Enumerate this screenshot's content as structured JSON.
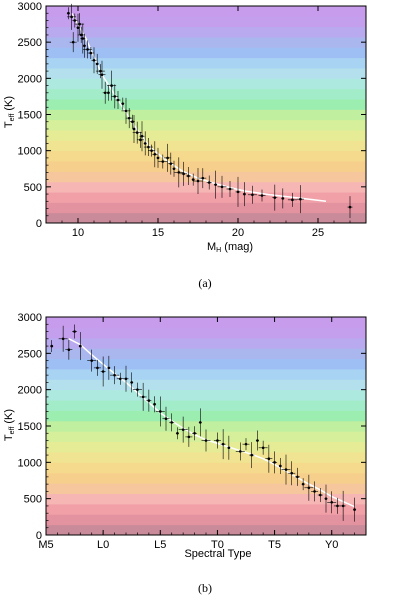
{
  "band_colors": [
    "#c98b9a",
    "#e3929f",
    "#f1a0a8",
    "#f6b7b4",
    "#f6c79c",
    "#f7cf8c",
    "#f5d98c",
    "#f0e391",
    "#e6ec95",
    "#d6ef9a",
    "#bfef9f",
    "#9bedb0",
    "#a3ecc9",
    "#aee9df",
    "#b3e0ec",
    "#a9d3f3",
    "#9ebff3",
    "#aab7ef",
    "#b9aaef",
    "#c39fee",
    "#c89ced"
  ],
  "chart_data": [
    {
      "type": "scatter",
      "panel_label": "(a)",
      "xlabel": "M",
      "xlabel_sub": "H",
      "xlabel_suffix": " (mag)",
      "ylabel": "T",
      "ylabel_sub": "eff",
      "ylabel_suffix": " (K)",
      "xlim": [
        8,
        28
      ],
      "ylim": [
        0,
        3000
      ],
      "x_ticks": [
        10,
        15,
        20,
        25
      ],
      "x_tick_labels": [
        "10",
        "15",
        "20",
        "25"
      ],
      "y_ticks": [
        0,
        500,
        1000,
        1500,
        2000,
        2500,
        3000
      ],
      "y_tick_labels": [
        "0",
        "500",
        "1000",
        "1500",
        "2000",
        "2500",
        "3000"
      ],
      "fit": {
        "x": [
          9.6,
          10.5,
          11.5,
          12.5,
          13.5,
          14.5,
          15.5,
          16.5,
          17.5,
          18.5,
          19.5,
          20.5,
          22,
          24,
          25.5
        ],
        "y": [
          2900,
          2550,
          2050,
          1700,
          1350,
          1050,
          870,
          720,
          620,
          550,
          490,
          440,
          390,
          340,
          300
        ]
      },
      "points": [
        {
          "x": 9.4,
          "y": 2900
        },
        {
          "x": 9.6,
          "y": 2850
        },
        {
          "x": 9.7,
          "y": 2500
        },
        {
          "x": 9.8,
          "y": 2800
        },
        {
          "x": 10.0,
          "y": 2700
        },
        {
          "x": 10.1,
          "y": 2750
        },
        {
          "x": 10.2,
          "y": 2600
        },
        {
          "x": 10.3,
          "y": 2550
        },
        {
          "x": 10.4,
          "y": 2450
        },
        {
          "x": 10.6,
          "y": 2400
        },
        {
          "x": 10.8,
          "y": 2350
        },
        {
          "x": 11.0,
          "y": 2250
        },
        {
          "x": 11.2,
          "y": 2200
        },
        {
          "x": 11.4,
          "y": 2100
        },
        {
          "x": 11.5,
          "y": 2050
        },
        {
          "x": 11.7,
          "y": 1800
        },
        {
          "x": 11.9,
          "y": 1800
        },
        {
          "x": 12.1,
          "y": 1900
        },
        {
          "x": 12.3,
          "y": 1750
        },
        {
          "x": 12.5,
          "y": 1700
        },
        {
          "x": 12.8,
          "y": 1650
        },
        {
          "x": 13.0,
          "y": 1550
        },
        {
          "x": 13.2,
          "y": 1450
        },
        {
          "x": 13.4,
          "y": 1400
        },
        {
          "x": 13.5,
          "y": 1300
        },
        {
          "x": 13.7,
          "y": 1250
        },
        {
          "x": 13.9,
          "y": 1150
        },
        {
          "x": 14.0,
          "y": 1200
        },
        {
          "x": 14.2,
          "y": 1100
        },
        {
          "x": 14.4,
          "y": 1050
        },
        {
          "x": 14.6,
          "y": 1000
        },
        {
          "x": 14.8,
          "y": 950
        },
        {
          "x": 15.0,
          "y": 900
        },
        {
          "x": 15.3,
          "y": 850
        },
        {
          "x": 15.6,
          "y": 900
        },
        {
          "x": 15.8,
          "y": 820
        },
        {
          "x": 16.0,
          "y": 750
        },
        {
          "x": 16.3,
          "y": 700
        },
        {
          "x": 16.6,
          "y": 680
        },
        {
          "x": 16.9,
          "y": 650
        },
        {
          "x": 17.2,
          "y": 600
        },
        {
          "x": 17.5,
          "y": 580
        },
        {
          "x": 17.8,
          "y": 620
        },
        {
          "x": 18.2,
          "y": 560
        },
        {
          "x": 18.6,
          "y": 530
        },
        {
          "x": 19.0,
          "y": 500
        },
        {
          "x": 19.5,
          "y": 470
        },
        {
          "x": 20.0,
          "y": 430
        },
        {
          "x": 20.4,
          "y": 400
        },
        {
          "x": 20.9,
          "y": 390
        },
        {
          "x": 21.5,
          "y": 380
        },
        {
          "x": 22.3,
          "y": 350
        },
        {
          "x": 22.8,
          "y": 340
        },
        {
          "x": 23.4,
          "y": 320
        },
        {
          "x": 23.9,
          "y": 330
        },
        {
          "x": 27.0,
          "y": 220
        }
      ]
    },
    {
      "type": "scatter",
      "panel_label": "(b)",
      "xlabel": "Spectral Type",
      "ylabel": "T",
      "ylabel_sub": "eff",
      "ylabel_suffix": " (K)",
      "xlim": [
        0,
        28
      ],
      "ylim": [
        0,
        3000
      ],
      "x_ticks": [
        0,
        5,
        10,
        15,
        20,
        25
      ],
      "x_tick_labels": [
        "M5",
        "L0",
        "L5",
        "T0",
        "T5",
        "Y0"
      ],
      "y_ticks": [
        0,
        500,
        1000,
        1500,
        2000,
        2500,
        3000
      ],
      "y_tick_labels": [
        "0",
        "500",
        "1000",
        "1500",
        "2000",
        "2500",
        "3000"
      ],
      "fit": {
        "x": [
          2,
          3,
          4,
          5,
          6,
          7,
          8,
          9,
          10,
          11,
          12,
          13,
          14,
          15,
          16,
          17,
          18,
          19,
          20,
          21,
          22,
          23,
          24,
          25,
          26,
          27
        ],
        "y": [
          2700,
          2620,
          2480,
          2350,
          2220,
          2100,
          1960,
          1820,
          1680,
          1570,
          1470,
          1380,
          1310,
          1260,
          1210,
          1160,
          1110,
          1050,
          970,
          880,
          790,
          700,
          620,
          530,
          460,
          390
        ]
      },
      "points": [
        {
          "x": 0.5,
          "y": 2600
        },
        {
          "x": 1.5,
          "y": 2700
        },
        {
          "x": 2.0,
          "y": 2550
        },
        {
          "x": 2.5,
          "y": 2800
        },
        {
          "x": 3.0,
          "y": 2600
        },
        {
          "x": 4.0,
          "y": 2400
        },
        {
          "x": 4.5,
          "y": 2300
        },
        {
          "x": 5.0,
          "y": 2250
        },
        {
          "x": 5.5,
          "y": 2300
        },
        {
          "x": 6.0,
          "y": 2200
        },
        {
          "x": 6.5,
          "y": 2150
        },
        {
          "x": 7.0,
          "y": 2150
        },
        {
          "x": 7.5,
          "y": 2100
        },
        {
          "x": 8.0,
          "y": 2000
        },
        {
          "x": 8.5,
          "y": 1900
        },
        {
          "x": 9.0,
          "y": 1850
        },
        {
          "x": 9.5,
          "y": 1800
        },
        {
          "x": 10.0,
          "y": 1700
        },
        {
          "x": 10.5,
          "y": 1600
        },
        {
          "x": 11.0,
          "y": 1550
        },
        {
          "x": 11.5,
          "y": 1400
        },
        {
          "x": 12.0,
          "y": 1450
        },
        {
          "x": 12.5,
          "y": 1350
        },
        {
          "x": 13.0,
          "y": 1400
        },
        {
          "x": 13.5,
          "y": 1550
        },
        {
          "x": 14.0,
          "y": 1300
        },
        {
          "x": 15.0,
          "y": 1300
        },
        {
          "x": 15.5,
          "y": 1250
        },
        {
          "x": 16.0,
          "y": 1200
        },
        {
          "x": 17.0,
          "y": 1150
        },
        {
          "x": 17.5,
          "y": 1250
        },
        {
          "x": 18.0,
          "y": 1100
        },
        {
          "x": 18.5,
          "y": 1300
        },
        {
          "x": 19.0,
          "y": 1200
        },
        {
          "x": 19.5,
          "y": 1050
        },
        {
          "x": 20.0,
          "y": 1000
        },
        {
          "x": 20.5,
          "y": 950
        },
        {
          "x": 21.0,
          "y": 900
        },
        {
          "x": 21.5,
          "y": 850
        },
        {
          "x": 22.0,
          "y": 800
        },
        {
          "x": 22.5,
          "y": 700
        },
        {
          "x": 23.0,
          "y": 650
        },
        {
          "x": 23.5,
          "y": 600
        },
        {
          "x": 24.0,
          "y": 550
        },
        {
          "x": 24.5,
          "y": 500
        },
        {
          "x": 25.0,
          "y": 450
        },
        {
          "x": 25.5,
          "y": 400
        },
        {
          "x": 26.0,
          "y": 400
        },
        {
          "x": 27.0,
          "y": 350
        }
      ]
    }
  ]
}
